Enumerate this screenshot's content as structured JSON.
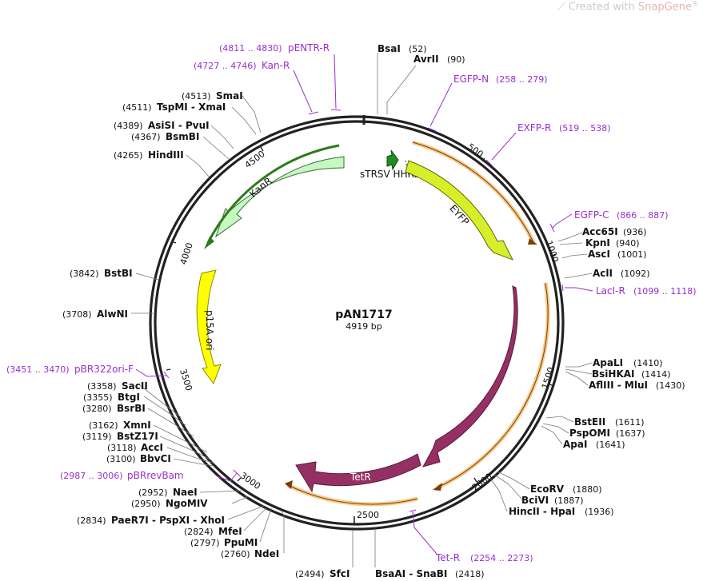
{
  "watermark": {
    "prefix": "Created with",
    "brand": "SnapGene",
    "reg": "®"
  },
  "plasmid": {
    "name": "pAN1717",
    "size_label": "4919 bp",
    "length": 4919
  },
  "ticks": [
    {
      "pos": 500,
      "label": "500"
    },
    {
      "pos": 1000,
      "label": "1000"
    },
    {
      "pos": 1500,
      "label": "1500"
    },
    {
      "pos": 2000,
      "label": "2000"
    },
    {
      "pos": 2500,
      "label": "2500"
    },
    {
      "pos": 3000,
      "label": "3000"
    },
    {
      "pos": 3500,
      "label": "3500"
    },
    {
      "pos": 4000,
      "label": "4000"
    },
    {
      "pos": 4500,
      "label": "4500"
    }
  ],
  "features": [
    {
      "id": "trsv",
      "name": "sTRSV HHRz",
      "color": "#228b22"
    },
    {
      "id": "eyfp",
      "name": "EYFP",
      "color": "#d7ef2a"
    },
    {
      "id": "lacI",
      "name": "lacI",
      "color": "#953064"
    },
    {
      "id": "tetR",
      "name": "TetR",
      "color": "#953064"
    },
    {
      "id": "kanR",
      "name": "KanR",
      "color": "#c6f9c1"
    },
    {
      "id": "p15a",
      "name": "p15A ori",
      "color": "#ffff00"
    }
  ],
  "enzymes": [
    {
      "name": "BsaI",
      "pos": "(52)"
    },
    {
      "name": "AvrII",
      "pos": "(90)"
    },
    {
      "name": "Acc65I",
      "pos": "(936)"
    },
    {
      "name": "KpnI",
      "pos": "(940)"
    },
    {
      "name": "AscI",
      "pos": "(1001)"
    },
    {
      "name": "AclI",
      "pos": "(1092)"
    },
    {
      "name": "ApaLI",
      "pos": "(1410)"
    },
    {
      "name": "BsiHKAI",
      "pos": "(1414)"
    },
    {
      "name": "AflIII - MluI",
      "pos": "(1430)"
    },
    {
      "name": "BstEII",
      "pos": "(1611)"
    },
    {
      "name": "PspOMI",
      "pos": "(1637)"
    },
    {
      "name": "ApaI",
      "pos": "(1641)"
    },
    {
      "name": "EcoRV",
      "pos": "(1880)"
    },
    {
      "name": "BciVI",
      "pos": "(1887)"
    },
    {
      "name": "HincII - HpaI",
      "pos": "(1936)"
    },
    {
      "name": "BsaAI - SnaBI",
      "pos": "(2418)"
    },
    {
      "name": "SfcI",
      "pos": "(2494)"
    },
    {
      "name": "NdeI",
      "pos": "(2760)"
    },
    {
      "name": "PpuMI",
      "pos": "(2797)"
    },
    {
      "name": "MfeI",
      "pos": "(2824)"
    },
    {
      "name": "PaeR7I - PspXI - XhoI",
      "pos": "(2834)"
    },
    {
      "name": "NgoMIV",
      "pos": "(2950)"
    },
    {
      "name": "NaeI",
      "pos": "(2952)"
    },
    {
      "name": "BbvCI",
      "pos": "(3100)"
    },
    {
      "name": "AccI",
      "pos": "(3118)"
    },
    {
      "name": "BstZ17I",
      "pos": "(3119)"
    },
    {
      "name": "XmnI",
      "pos": "(3162)"
    },
    {
      "name": "BsrBI",
      "pos": "(3280)"
    },
    {
      "name": "BtgI",
      "pos": "(3355)"
    },
    {
      "name": "SacII",
      "pos": "(3358)"
    },
    {
      "name": "AlwNI",
      "pos": "(3708)"
    },
    {
      "name": "BstBI",
      "pos": "(3842)"
    },
    {
      "name": "HindIII",
      "pos": "(4265)"
    },
    {
      "name": "BsmBI",
      "pos": "(4367)"
    },
    {
      "name": "AsiSI - PvuI",
      "pos": "(4389)"
    },
    {
      "name": "TspMI - XmaI",
      "pos": "(4511)"
    },
    {
      "name": "SmaI",
      "pos": "(4513)"
    }
  ],
  "primers": [
    {
      "name": "pENTR-R",
      "range": "(4811 .. 4830)"
    },
    {
      "name": "Kan-R",
      "range": "(4727 .. 4746)"
    },
    {
      "name": "EGFP-N",
      "range": "(258 .. 279)"
    },
    {
      "name": "EXFP-R",
      "range": "(519 .. 538)"
    },
    {
      "name": "EGFP-C",
      "range": "(866 .. 887)"
    },
    {
      "name": "LacI-R",
      "range": "(1099 .. 1118)"
    },
    {
      "name": "pBR322ori-F",
      "range": "(3451 .. 3470)"
    },
    {
      "name": "pBRrevBam",
      "range": "(2987 .. 3006)"
    },
    {
      "name": "Tet-R",
      "range": "(2254 .. 2273)"
    }
  ]
}
